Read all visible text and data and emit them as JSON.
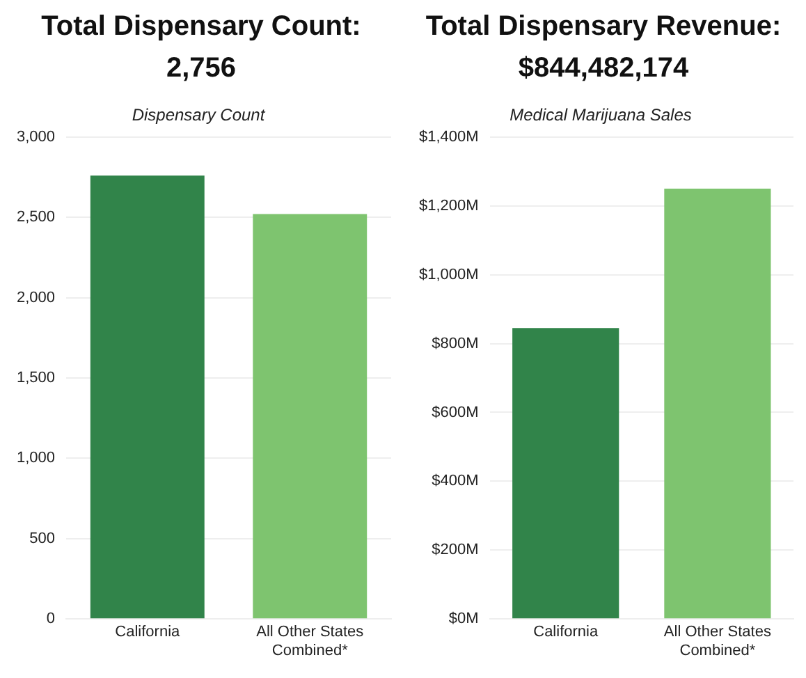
{
  "chart_data": [
    {
      "type": "bar",
      "title": "Total Dispensary Count: 2,756",
      "subtitle": "Dispensary Count",
      "categories": [
        "California",
        "All Other States Combined*"
      ],
      "values": [
        2760,
        2520
      ],
      "colors": [
        "#31844a",
        "#7ec46f"
      ],
      "ylim": [
        0,
        3000
      ],
      "yticks": [
        0,
        {
          "value": 500,
          "label": "500"
        },
        {
          "value": 1000,
          "label": "1,000"
        },
        {
          "value": 1500,
          "label": "1,500"
        },
        {
          "value": 2000,
          "label": "2,000"
        },
        {
          "value": 2500,
          "label": "2,500"
        },
        {
          "value": 3000,
          "label": "3,000"
        }
      ],
      "grid": "y",
      "legend": false
    },
    {
      "type": "bar",
      "title": "Total Dispensary Revenue: $844,482,174",
      "subtitle": "Medical Marijuana Sales",
      "categories": [
        "California",
        "All Other States Combined*"
      ],
      "values": [
        845,
        1250
      ],
      "colors": [
        "#31844a",
        "#7ec46f"
      ],
      "ylim": [
        0,
        1400
      ],
      "yticks": [
        {
          "value": 0,
          "label": "$0M"
        },
        {
          "value": 200,
          "label": "$200M"
        },
        {
          "value": 400,
          "label": "$400M"
        },
        {
          "value": 600,
          "label": "$600M"
        },
        {
          "value": 800,
          "label": "$800M"
        },
        {
          "value": 1000,
          "label": "$1,000M"
        },
        {
          "value": 1200,
          "label": "$1,200M"
        },
        {
          "value": 1400,
          "label": "$1,400M"
        }
      ],
      "grid": "y",
      "legend": false
    }
  ]
}
